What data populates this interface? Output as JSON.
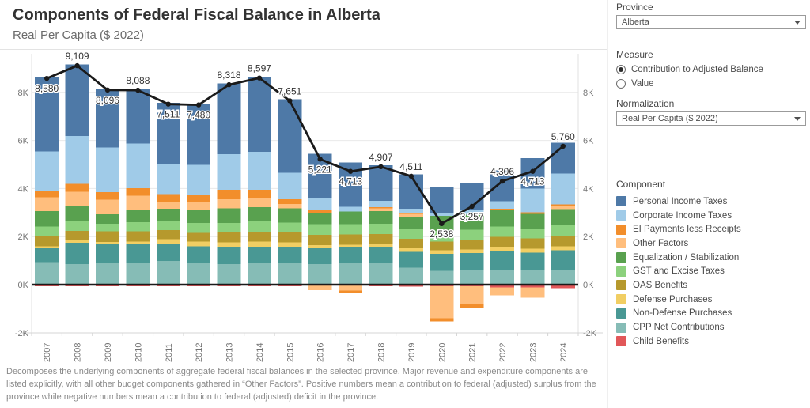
{
  "header": {
    "title": "Components of Federal Fiscal Balance in Alberta",
    "subtitle": "Real Per Capita ($ 2022)"
  },
  "sidebar": {
    "province": {
      "label": "Province",
      "value": "Alberta"
    },
    "measure": {
      "label": "Measure",
      "options": [
        {
          "label": "Contribution to Adjusted Balance",
          "selected": true
        },
        {
          "label": "Value",
          "selected": false
        }
      ]
    },
    "normalization": {
      "label": "Normalization",
      "value": "Real Per Capita ($ 2022)"
    },
    "legend": {
      "title": "Component"
    }
  },
  "footer": {
    "text": "Decomposes the underlying components of aggregate federal fiscal balances in the selected province. Major revenue and expenditure components are listed explicitly, with all other budget components gathered in “Other Factors”. Positive numbers mean a contribution to federal (adjusted) surplus from the province while negative numbers mean a contribution to federal (adjusted) deficit in the province."
  },
  "chart_data": {
    "type": "bar",
    "subtype": "stacked-bars-with-net-line",
    "title": "Components of Federal Fiscal Balance in Alberta",
    "subtitle": "Real Per Capita ($ 2022)",
    "xlabel": "",
    "ylabel": "",
    "grid": "horizontal-light",
    "legend_position": "right",
    "ylim": [
      -2000,
      9400
    ],
    "y_axis": {
      "tick_values": [
        -2000,
        0,
        2000,
        4000,
        6000,
        8000
      ],
      "tick_labels": [
        "-2K",
        "0K",
        "2K",
        "4K",
        "6K",
        "8K"
      ],
      "shown_on": "both-sides"
    },
    "categories": [
      "2007",
      "2008",
      "2009",
      "2010",
      "2011",
      "2012",
      "2013",
      "2014",
      "2015",
      "2016",
      "2017",
      "2018",
      "2019",
      "2020",
      "2021",
      "2022",
      "2023",
      "2024"
    ],
    "components": [
      {
        "name": "Personal Income Taxes",
        "color": "#4E79A7",
        "values": [
          3095,
          2979,
          2446,
          2273,
          2566,
          2555,
          2958,
          3137,
          3061,
          1866,
          1843,
          1487,
          1441,
          1088,
          1127,
          1271,
          1263,
          1285
        ]
      },
      {
        "name": "Corporate Income Taxes",
        "color": "#A0CBE8",
        "values": [
          1650,
          2000,
          1860,
          1870,
          1245,
          1235,
          1475,
          1565,
          1100,
          475,
          200,
          250,
          150,
          130,
          200,
          310,
          990,
          1285
        ]
      },
      {
        "name": "EI Payments less Receipts",
        "color": "#F28E2B",
        "values": [
          260,
          330,
          310,
          300,
          300,
          310,
          395,
          365,
          190,
          110,
          -130,
          60,
          60,
          -145,
          -145,
          60,
          60,
          60
        ]
      },
      {
        "name": "Other Factors",
        "color": "#FFBE7D",
        "values": [
          580,
          605,
          605,
          605,
          310,
          330,
          375,
          365,
          190,
          -185,
          -200,
          110,
          110,
          -1330,
          -770,
          -330,
          -440,
          140
        ]
      },
      {
        "name": "Equalization / Stabilization",
        "color": "#59A14F",
        "values": [
          630,
          605,
          405,
          495,
          485,
          550,
          615,
          595,
          585,
          485,
          530,
          530,
          495,
          615,
          615,
          680,
          620,
          660
        ]
      },
      {
        "name": "GST and Excise Taxes",
        "color": "#8CD17D",
        "values": [
          390,
          410,
          310,
          385,
          395,
          405,
          375,
          420,
          385,
          440,
          420,
          420,
          420,
          440,
          440,
          440,
          410,
          440
        ]
      },
      {
        "name": "OAS Benefits",
        "color": "#B6992D",
        "values": [
          440,
          400,
          440,
          420,
          380,
          370,
          420,
          420,
          440,
          420,
          430,
          430,
          410,
          375,
          390,
          420,
          430,
          440
        ]
      },
      {
        "name": "Defense Purchases",
        "color": "#F1CE63",
        "values": [
          90,
          90,
          110,
          130,
          220,
          190,
          200,
          210,
          200,
          130,
          100,
          110,
          140,
          140,
          150,
          170,
          150,
          170
        ]
      },
      {
        "name": "Non-Defense Purchases",
        "color": "#499894",
        "values": [
          570,
          900,
          750,
          750,
          680,
          715,
          715,
          700,
          680,
          660,
          680,
          690,
          660,
          715,
          715,
          770,
          715,
          800
        ]
      },
      {
        "name": "CPP Net Contributions",
        "color": "#86BCB6",
        "values": [
          935,
          850,
          920,
          920,
          990,
          880,
          850,
          880,
          880,
          860,
          880,
          880,
          705,
          570,
          595,
          625,
          625,
          625
        ]
      },
      {
        "name": "Child Benefits",
        "color": "#E15759",
        "values": [
          -60,
          -60,
          -60,
          -60,
          -60,
          -60,
          -60,
          -60,
          -60,
          -40,
          -40,
          -60,
          -80,
          -60,
          -60,
          -110,
          -110,
          -145
        ]
      }
    ],
    "net_line": {
      "color": "#1a1a1a",
      "values": [
        8580,
        9109,
        8096,
        8088,
        7511,
        7480,
        8318,
        8597,
        7651,
        5221,
        4713,
        4907,
        4511,
        2538,
        3257,
        4306,
        4713,
        5760
      ],
      "labels": [
        "8,580",
        "9,109",
        "8,096",
        "8,088",
        "7,511",
        "7,480",
        "8,318",
        "8,597",
        "7,651",
        "5,221",
        "4,713",
        "4,907",
        "4,511",
        "2,538",
        "3,257",
        "4,306",
        "4,713",
        "5,760"
      ],
      "label_positions": [
        "below",
        "above",
        "below",
        "above",
        "below",
        "below",
        "above",
        "above",
        "above",
        "below",
        "below",
        "above",
        "above",
        "below",
        "below",
        "above",
        "below",
        "above"
      ]
    }
  }
}
